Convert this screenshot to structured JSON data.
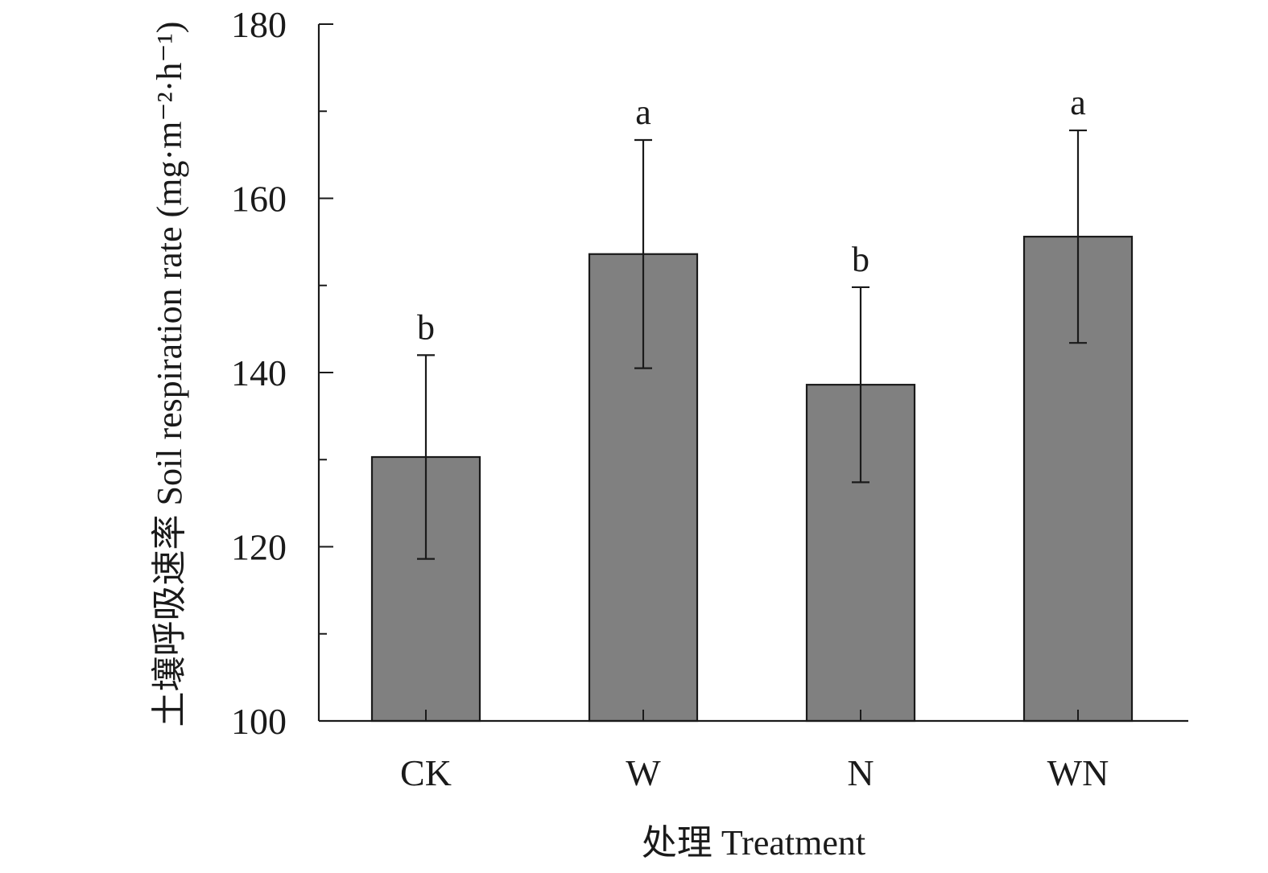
{
  "chart_data": {
    "type": "bar",
    "categories": [
      "CK",
      "W",
      "N",
      "WN"
    ],
    "values": [
      130.3,
      153.6,
      138.6,
      155.6
    ],
    "errors": [
      11.7,
      13.1,
      11.2,
      12.2
    ],
    "significance": [
      "b",
      "a",
      "b",
      "a"
    ],
    "xlabel": "处理 Treatment",
    "ylabel": "土壤呼吸速率 Soil respiration rate (mg·m⁻²·h⁻¹)",
    "ylim": [
      100,
      180
    ],
    "yticks": [
      100,
      120,
      140,
      160,
      180
    ],
    "y_minor_ticks": [
      110,
      130,
      150,
      170
    ],
    "grid": false,
    "colors": {
      "bar_fill": "#808080",
      "bar_edge": "#1a1a1a",
      "axis": "#1a1a1a"
    }
  }
}
